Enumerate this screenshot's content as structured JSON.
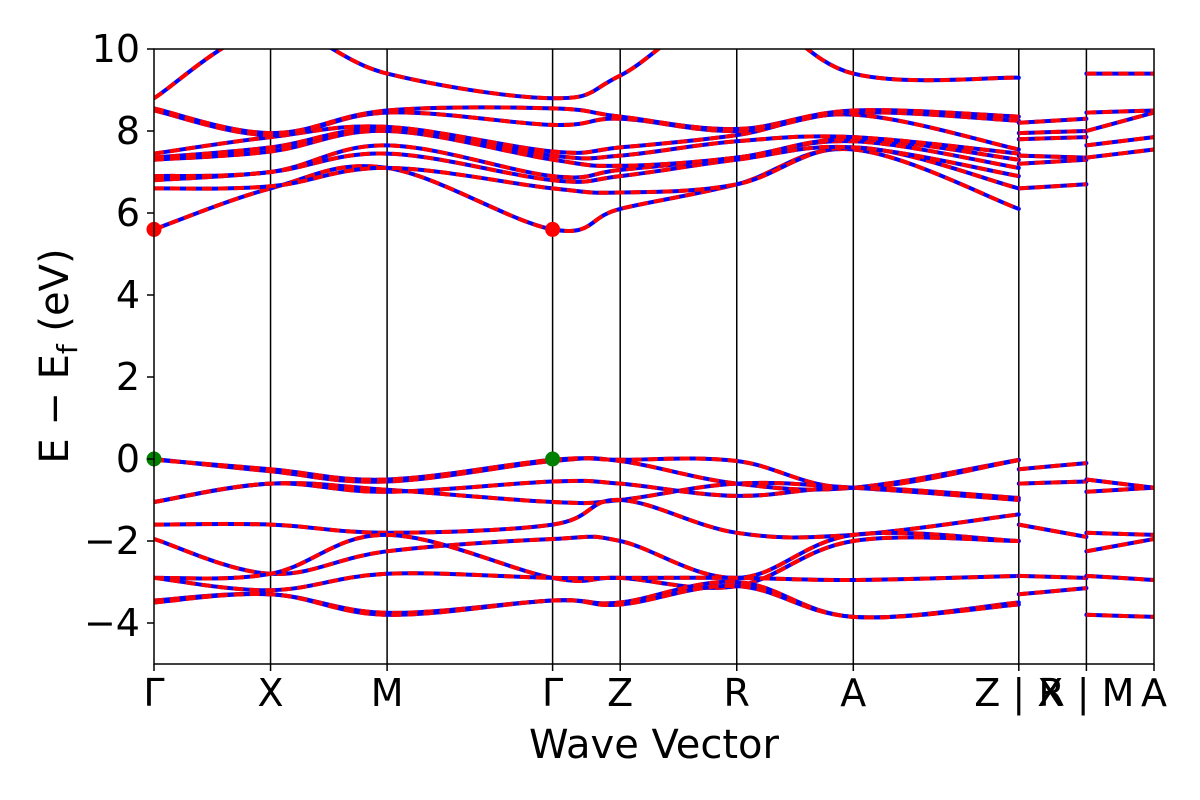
{
  "chart_data": {
    "type": "line",
    "title": "",
    "xlabel": "Wave Vector",
    "ylabel": {
      "main": "E − E",
      "sub": "f",
      "unit": " (eV)"
    },
    "ylim": [
      -5,
      10
    ],
    "yticks": [
      -4,
      -2,
      0,
      2,
      4,
      6,
      8,
      10
    ],
    "ytick_labels": [
      "−4",
      "−2",
      "0",
      "2",
      "4",
      "6",
      "8",
      "10"
    ],
    "kpoint_labels": [
      "Γ",
      "X",
      "M",
      "Γ",
      "Z",
      "R",
      "A",
      "Z | X",
      "R | M",
      "A"
    ],
    "kpoint_positions": [
      0,
      1,
      2,
      3.42,
      4,
      5,
      6,
      7.42,
      8,
      8.58
    ],
    "grid": false,
    "legend": "none",
    "colors": {
      "spin_up": "#ff0000",
      "spin_down": "#0000ff",
      "cbm": "#ff0000",
      "vbm": "#008000"
    },
    "series_segments": [
      {
        "x": [
          0,
          7.42
        ],
        "y0": [
          0,
          0,
          -0.5,
          -1.02,
          -1.55,
          -1.95,
          -2.85,
          -3.45
        ],
        "curv": 0.35
      },
      {
        "x": [
          7.42,
          8
        ],
        "y0": [
          -0.25,
          -0.6,
          -1.6,
          -2.85,
          -3.3
        ]
      },
      {
        "x": [
          8,
          8.58
        ],
        "y0": [
          -0.5,
          -0.8,
          -1.8,
          -2.25,
          -2.85,
          -3.8
        ]
      }
    ],
    "valence_bands": [
      [
        0.0,
        -0.3,
        -0.55,
        -0.05,
        -0.05,
        -0.6,
        -0.7,
        -0.02
      ],
      [
        -0.02,
        -0.25,
        -0.5,
        -0.02,
        -0.02,
        -0.05,
        -0.7,
        -0.03
      ],
      [
        -1.05,
        -0.6,
        -0.75,
        -1.05,
        -1.0,
        -0.6,
        -0.7,
        -1.0
      ],
      [
        -1.05,
        -0.6,
        -0.8,
        -0.55,
        -0.6,
        -0.9,
        -0.7,
        -0.95
      ],
      [
        -1.6,
        -1.6,
        -1.8,
        -1.6,
        -1.0,
        -1.8,
        -1.85,
        -1.35
      ],
      [
        -1.95,
        -2.8,
        -2.25,
        -1.95,
        -2.0,
        -2.9,
        -1.85,
        -2.0
      ],
      [
        -2.9,
        -2.8,
        -1.85,
        -2.9,
        -2.9,
        -3.1,
        -2.0,
        -2.0
      ],
      [
        -2.9,
        -3.2,
        -2.8,
        -2.9,
        -2.9,
        -2.9,
        -2.95,
        -2.85
      ],
      [
        -3.45,
        -3.3,
        -3.75,
        -3.45,
        -3.5,
        -3.0,
        -3.85,
        -3.5
      ],
      [
        -3.5,
        -3.3,
        -3.8,
        -3.45,
        -3.55,
        -3.1,
        -3.85,
        -3.55
      ]
    ],
    "conduction_bands": [
      [
        5.6,
        6.6,
        7.1,
        5.6,
        6.1,
        6.7,
        7.55,
        6.1
      ],
      [
        6.6,
        6.65,
        7.1,
        6.6,
        6.5,
        6.7,
        7.6,
        6.6
      ],
      [
        6.8,
        7.0,
        7.45,
        6.8,
        6.9,
        7.3,
        7.6,
        6.9
      ],
      [
        6.9,
        7.0,
        7.65,
        6.9,
        7.05,
        7.35,
        7.75,
        7.1
      ],
      [
        7.3,
        7.5,
        8.0,
        7.3,
        7.15,
        7.35,
        7.8,
        7.3
      ],
      [
        7.35,
        7.6,
        8.05,
        7.4,
        7.4,
        7.75,
        7.85,
        7.45
      ],
      [
        7.45,
        7.85,
        8.1,
        7.5,
        7.6,
        7.9,
        8.4,
        7.55
      ],
      [
        8.5,
        7.9,
        8.45,
        8.15,
        8.3,
        8.0,
        8.45,
        8.25
      ],
      [
        8.55,
        7.95,
        8.5,
        8.55,
        8.35,
        8.05,
        8.5,
        8.35
      ],
      [
        8.8,
        10.5,
        9.4,
        8.8,
        9.35,
        11.0,
        9.4,
        9.3
      ]
    ],
    "right_segments": {
      "Z|X": [
        [
          -0.25,
          -0.1
        ],
        [
          -0.6,
          -0.55
        ],
        [
          -1.6,
          -1.9
        ],
        [
          -2.85,
          -2.9
        ],
        [
          -3.3,
          -3.15
        ],
        [
          6.6,
          6.7
        ],
        [
          7.2,
          7.3
        ],
        [
          7.4,
          7.35
        ],
        [
          7.8,
          7.85
        ],
        [
          7.95,
          8.0
        ],
        [
          8.2,
          8.3
        ]
      ],
      "R|M": [
        [
          -0.5,
          -0.7
        ],
        [
          -0.8,
          -0.7
        ],
        [
          -1.8,
          -1.85
        ],
        [
          -2.25,
          -1.95
        ],
        [
          -2.85,
          -2.95
        ],
        [
          -3.8,
          -3.85
        ],
        [
          7.35,
          7.55
        ],
        [
          7.65,
          7.85
        ],
        [
          8.0,
          8.45
        ],
        [
          8.45,
          8.5
        ],
        [
          9.4,
          9.4
        ]
      ]
    },
    "extrema_markers": [
      {
        "label": "CBM",
        "x": 0,
        "y": 5.6
      },
      {
        "label": "CBM",
        "x": 3.42,
        "y": 5.6
      },
      {
        "label": "VBM",
        "x": 0,
        "y": 0.0
      },
      {
        "label": "VBM",
        "x": 3.42,
        "y": 0.0
      }
    ]
  }
}
